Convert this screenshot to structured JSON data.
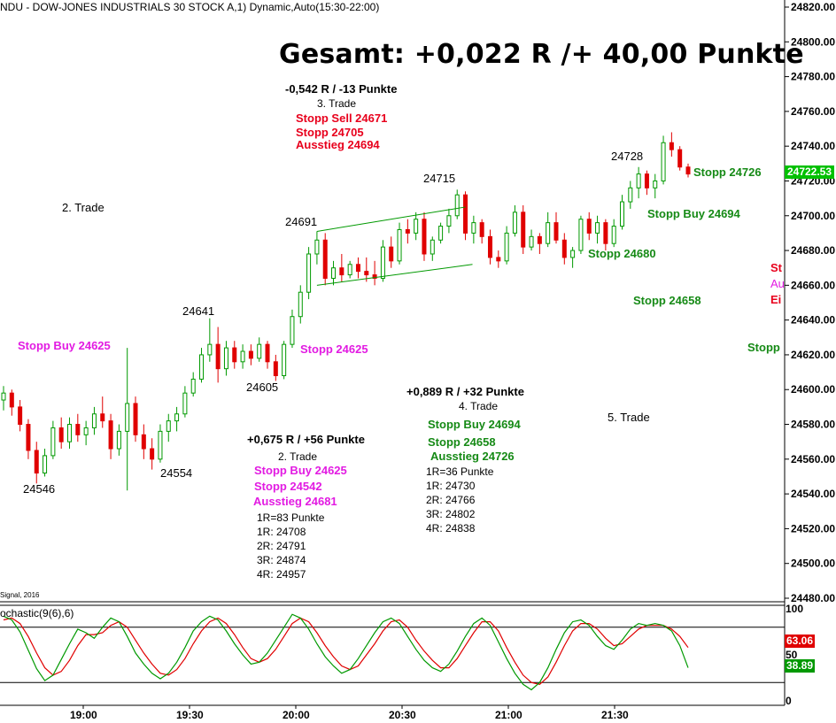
{
  "header": {
    "title": "NDU - DOW-JONES INDUSTRIALS 30 STOCK A,1) Dynamic,Auto(15:30-22:00)",
    "total": "Gesamt: +0,022 R /+ 40,00 Punkte"
  },
  "price_axis": {
    "ticks": [
      "24820.00",
      "24800.00",
      "24780.00",
      "24760.00",
      "24740.00",
      "24720.00",
      "24700.00",
      "24680.00",
      "24660.00",
      "24640.00",
      "24620.00",
      "24600.00",
      "24580.00",
      "24560.00",
      "24540.00",
      "24520.00",
      "24500.00",
      "24480.00"
    ],
    "tick_values": [
      24820,
      24800,
      24780,
      24760,
      24740,
      24720,
      24700,
      24680,
      24660,
      24640,
      24620,
      24600,
      24580,
      24560,
      24540,
      24520,
      24500,
      24480
    ],
    "current_price": "24722.53",
    "current_price_color": "#00c000"
  },
  "time_axis": [
    "19:00",
    "19:30",
    "20:00",
    "20:30",
    "21:00",
    "21:30"
  ],
  "indicator": {
    "signal_label": "Signal, 2016",
    "name": "ochastic(9(6),6)",
    "ticks": [
      "100",
      "50",
      "0"
    ],
    "value_red": "63.06",
    "value_green": "38.89",
    "color_k": "#009900",
    "color_d": "#e00000"
  },
  "annotations": {
    "point_labels": [
      "24546",
      "24554",
      "24641",
      "24605",
      "24691",
      "24715",
      "24728"
    ],
    "trade2_label": "2. Trade",
    "trade3_result": "-0,542 R / -13 Punkte",
    "trade3_label": "3. Trade",
    "trade3_stopp_sell": "Stopp Sell 24671",
    "trade3_stopp": "Stopp 24705",
    "trade3_exit": "Ausstieg 24694",
    "trade2_result": "+0,675 R / +56 Punkte",
    "trade2_label_b": "2. Trade",
    "trade2_stopp_buy": "Stopp Buy 24625",
    "trade2_stopp": "Stopp 24542",
    "trade2_exit": "Ausstieg 24681",
    "trade2_r": [
      "1R=83 Punkte",
      "1R: 24708",
      "2R: 24791",
      "3R: 24874",
      "4R: 24957"
    ],
    "trade4_result": "+0,889 R / +32 Punkte",
    "trade4_label": "4. Trade",
    "trade4_stopp_buy": "Stopp Buy 24694",
    "trade4_stopp": "Stopp 24658",
    "trade4_exit": "Ausstieg 24726",
    "trade4_r": [
      "1R=36 Punkte",
      "1R: 24730",
      "2R: 24766",
      "3R: 24802",
      "4R: 24838"
    ],
    "trade5_label": "5. Trade",
    "left_stopp_buy": "Stopp Buy 24625",
    "mid_stopp": "Stopp 24625",
    "right_stopp_26": "Stopp 24726",
    "right_stopp_buy": "Stopp Buy 24694",
    "right_stopp_80": "Stopp 24680",
    "right_stopp_58": "Stopp 24658",
    "edge_st": "St",
    "edge_au": "Au",
    "edge_ei": "Ei",
    "edge_stopp": "Stopp"
  },
  "chart_data": {
    "type": "candlestick",
    "time_range": [
      "18:40",
      "21:55"
    ],
    "time_ticks": [
      "19:00",
      "19:30",
      "20:00",
      "20:30",
      "21:00",
      "21:30"
    ],
    "ylim": [
      24480,
      24825
    ],
    "ohlc": [
      [
        24594,
        24602,
        24588,
        24598
      ],
      [
        24598,
        24600,
        24585,
        24590
      ],
      [
        24590,
        24594,
        24576,
        24580
      ],
      [
        24580,
        24583,
        24560,
        24565
      ],
      [
        24565,
        24570,
        24546,
        24552
      ],
      [
        24552,
        24566,
        24550,
        24562
      ],
      [
        24562,
        24582,
        24560,
        24578
      ],
      [
        24578,
        24584,
        24566,
        24570
      ],
      [
        24570,
        24584,
        24566,
        24580
      ],
      [
        24580,
        24586,
        24570,
        24574
      ],
      [
        24574,
        24582,
        24568,
        24578
      ],
      [
        24578,
        24590,
        24574,
        24586
      ],
      [
        24586,
        24596,
        24578,
        24582
      ],
      [
        24582,
        24586,
        24560,
        24566
      ],
      [
        24566,
        24580,
        24562,
        24576
      ],
      [
        24576,
        24624,
        24542,
        24592
      ],
      [
        24592,
        24596,
        24570,
        24574
      ],
      [
        24574,
        24580,
        24560,
        24566
      ],
      [
        24566,
        24572,
        24554,
        24560
      ],
      [
        24560,
        24580,
        24558,
        24576
      ],
      [
        24576,
        24586,
        24570,
        24582
      ],
      [
        24582,
        24590,
        24576,
        24586
      ],
      [
        24586,
        24602,
        24584,
        24598
      ],
      [
        24598,
        24610,
        24596,
        24606
      ],
      [
        24606,
        24624,
        24604,
        24620
      ],
      [
        24620,
        24641,
        24616,
        24626
      ],
      [
        24626,
        24636,
        24604,
        24612
      ],
      [
        24612,
        24628,
        24608,
        24624
      ],
      [
        24624,
        24628,
        24612,
        24616
      ],
      [
        24616,
        24626,
        24612,
        24622
      ],
      [
        24622,
        24626,
        24614,
        24618
      ],
      [
        24618,
        24630,
        24616,
        24626
      ],
      [
        24626,
        24628,
        24612,
        24616
      ],
      [
        24616,
        24620,
        24605,
        24608
      ],
      [
        24608,
        24628,
        24606,
        24626
      ],
      [
        24626,
        24646,
        24624,
        24642
      ],
      [
        24642,
        24660,
        24638,
        24656
      ],
      [
        24656,
        24682,
        24652,
        24678
      ],
      [
        24678,
        24691,
        24672,
        24686
      ],
      [
        24686,
        24690,
        24660,
        24664
      ],
      [
        24664,
        24674,
        24660,
        24670
      ],
      [
        24670,
        24678,
        24662,
        24666
      ],
      [
        24666,
        24674,
        24664,
        24672
      ],
      [
        24672,
        24676,
        24664,
        24668
      ],
      [
        24668,
        24676,
        24662,
        24666
      ],
      [
        24666,
        24674,
        24660,
        24664
      ],
      [
        24664,
        24686,
        24662,
        24682
      ],
      [
        24682,
        24688,
        24670,
        24674
      ],
      [
        24674,
        24696,
        24672,
        24692
      ],
      [
        24692,
        24698,
        24684,
        24690
      ],
      [
        24690,
        24702,
        24686,
        24698
      ],
      [
        24698,
        24702,
        24674,
        24678
      ],
      [
        24678,
        24688,
        24674,
        24686
      ],
      [
        24686,
        24696,
        24684,
        24694
      ],
      [
        24694,
        24704,
        24690,
        24700
      ],
      [
        24700,
        24715,
        24698,
        24712
      ],
      [
        24712,
        24714,
        24686,
        24690
      ],
      [
        24690,
        24700,
        24684,
        24696
      ],
      [
        24696,
        24698,
        24684,
        24688
      ],
      [
        24688,
        24692,
        24672,
        24676
      ],
      [
        24676,
        24680,
        24670,
        24674
      ],
      [
        24674,
        24694,
        24672,
        24690
      ],
      [
        24690,
        24706,
        24688,
        24702
      ],
      [
        24702,
        24706,
        24678,
        24682
      ],
      [
        24682,
        24692,
        24680,
        24688
      ],
      [
        24688,
        24690,
        24678,
        24684
      ],
      [
        24684,
        24702,
        24682,
        24696
      ],
      [
        24696,
        24702,
        24684,
        24686
      ],
      [
        24686,
        24690,
        24672,
        24676
      ],
      [
        24676,
        24682,
        24670,
        24680
      ],
      [
        24680,
        24700,
        24678,
        24698
      ],
      [
        24698,
        24702,
        24686,
        24690
      ],
      [
        24690,
        24700,
        24684,
        24696
      ],
      [
        24696,
        24698,
        24680,
        24684
      ],
      [
        24684,
        24698,
        24682,
        24694
      ],
      [
        24694,
        24712,
        24692,
        24708
      ],
      [
        24708,
        24720,
        24704,
        24716
      ],
      [
        24716,
        24728,
        24710,
        24724
      ],
      [
        24724,
        24726,
        24712,
        24716
      ],
      [
        24716,
        24724,
        24710,
        24720
      ],
      [
        24720,
        24746,
        24718,
        24742
      ],
      [
        24742,
        24748,
        24734,
        24738
      ],
      [
        24738,
        24740,
        24726,
        24728
      ],
      [
        24728,
        24730,
        24722,
        24724
      ]
    ],
    "channel_upper": [
      [
        24691,
        24705
      ]
    ],
    "stochastic_k": [
      92,
      88,
      75,
      55,
      35,
      22,
      28,
      45,
      62,
      78,
      74,
      68,
      80,
      90,
      86,
      70,
      52,
      40,
      30,
      24,
      30,
      42,
      58,
      76,
      86,
      92,
      88,
      76,
      62,
      50,
      40,
      42,
      52,
      66,
      80,
      94,
      90,
      78,
      62,
      48,
      38,
      30,
      34,
      46,
      60,
      74,
      86,
      90,
      84,
      70,
      56,
      44,
      36,
      32,
      40,
      54,
      70,
      84,
      90,
      82,
      64,
      46,
      30,
      18,
      12,
      20,
      36,
      56,
      74,
      86,
      88,
      82,
      70,
      60,
      56,
      66,
      78,
      84,
      82,
      84,
      82,
      76,
      60,
      36
    ],
    "stochastic_d": [
      88,
      90,
      84,
      70,
      52,
      36,
      28,
      32,
      44,
      60,
      72,
      72,
      74,
      82,
      86,
      80,
      66,
      52,
      40,
      30,
      28,
      34,
      46,
      62,
      76,
      86,
      90,
      84,
      72,
      58,
      46,
      42,
      46,
      56,
      70,
      84,
      90,
      86,
      74,
      60,
      48,
      38,
      34,
      38,
      50,
      62,
      76,
      86,
      88,
      80,
      66,
      54,
      44,
      36,
      36,
      46,
      60,
      74,
      86,
      86,
      76,
      58,
      42,
      28,
      20,
      18,
      26,
      42,
      60,
      76,
      84,
      84,
      78,
      68,
      60,
      62,
      70,
      78,
      82,
      82,
      82,
      78,
      70,
      58
    ]
  }
}
